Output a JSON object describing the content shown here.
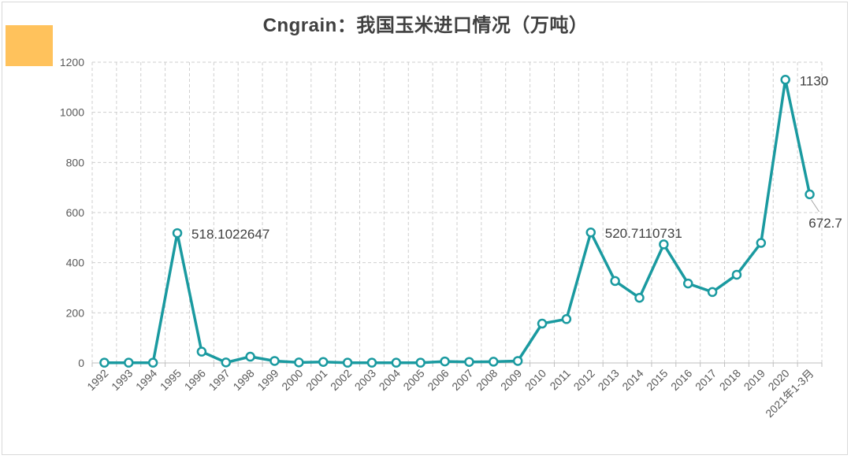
{
  "chart_data": {
    "type": "line",
    "title": "Cngrain：我国玉米进口情况（万吨）",
    "xlabel": "",
    "ylabel": "",
    "ylim": [
      0,
      1200
    ],
    "yticks": [
      0,
      200,
      400,
      600,
      800,
      1000,
      1200
    ],
    "grid": true,
    "legend": "none",
    "categories": [
      "1992",
      "1993",
      "1994",
      "1995",
      "1996",
      "1997",
      "1998",
      "1999",
      "2000",
      "2001",
      "2002",
      "2003",
      "2004",
      "2005",
      "2006",
      "2007",
      "2008",
      "2009",
      "2010",
      "2011",
      "2012",
      "2013",
      "2014",
      "2015",
      "2016",
      "2017",
      "2018",
      "2019",
      "2020",
      "2021年1-3月"
    ],
    "series": [
      {
        "values": [
          1,
          1,
          1,
          518.1,
          45,
          2,
          25,
          8,
          2,
          4,
          1,
          1,
          1,
          1,
          6,
          4,
          5,
          8,
          157,
          175,
          520.7,
          327,
          260,
          473,
          317,
          283,
          352,
          479,
          1130,
          672.7
        ]
      }
    ],
    "data_labels": [
      {
        "index": 3,
        "text": "518.1022647"
      },
      {
        "index": 20,
        "text": "520.7110731"
      },
      {
        "index": 28,
        "text": "1130"
      },
      {
        "index": 29,
        "text": "672.7"
      }
    ],
    "colors": {
      "line": "#1a9aa0",
      "orange_block": "#ffc25c"
    }
  }
}
